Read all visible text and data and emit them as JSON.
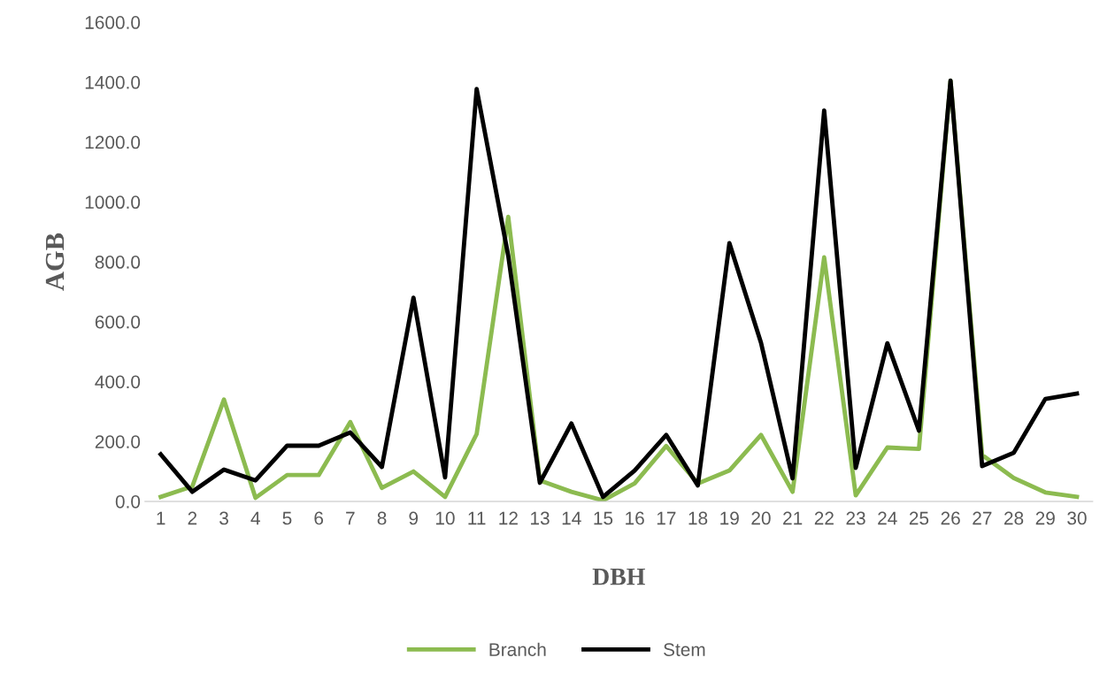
{
  "chart_data": {
    "type": "line",
    "xlabel": "DBH",
    "ylabel": "AGB",
    "categories": [
      "1",
      "2",
      "3",
      "4",
      "5",
      "6",
      "7",
      "8",
      "9",
      "10",
      "11",
      "12",
      "13",
      "14",
      "15",
      "16",
      "17",
      "18",
      "19",
      "20",
      "21",
      "22",
      "23",
      "24",
      "25",
      "26",
      "27",
      "28",
      "29",
      "30"
    ],
    "series": [
      {
        "name": "Branch",
        "color": "#8cbb50",
        "values": [
          15,
          50,
          340,
          12,
          88,
          88,
          265,
          45,
          100,
          15,
          225,
          950,
          70,
          32,
          3,
          60,
          185,
          60,
          103,
          222,
          32,
          815,
          20,
          180,
          175,
          1405,
          155,
          78,
          30,
          15
        ]
      },
      {
        "name": "Stem",
        "color": "#000000",
        "values": [
          157,
          32,
          106,
          70,
          186,
          186,
          230,
          115,
          680,
          80,
          1377,
          820,
          62,
          260,
          15,
          103,
          222,
          53,
          862,
          530,
          77,
          1305,
          112,
          528,
          236,
          1405,
          118,
          162,
          342,
          360
        ]
      }
    ],
    "ylim": [
      0,
      1600
    ],
    "yticks": [
      {
        "value": 0,
        "label": "0.0"
      },
      {
        "value": 200,
        "label": "200.0"
      },
      {
        "value": 400,
        "label": "400.0"
      },
      {
        "value": 600,
        "label": "600.0"
      },
      {
        "value": 800,
        "label": "800.0"
      },
      {
        "value": 1000,
        "label": "1000.0"
      },
      {
        "value": 1200,
        "label": "1200.0"
      },
      {
        "value": 1400,
        "label": "1400.0"
      },
      {
        "value": 1600,
        "label": "1600.0"
      }
    ],
    "grid": false,
    "legend": "bottom",
    "marker": "none",
    "line_style": "solid"
  }
}
